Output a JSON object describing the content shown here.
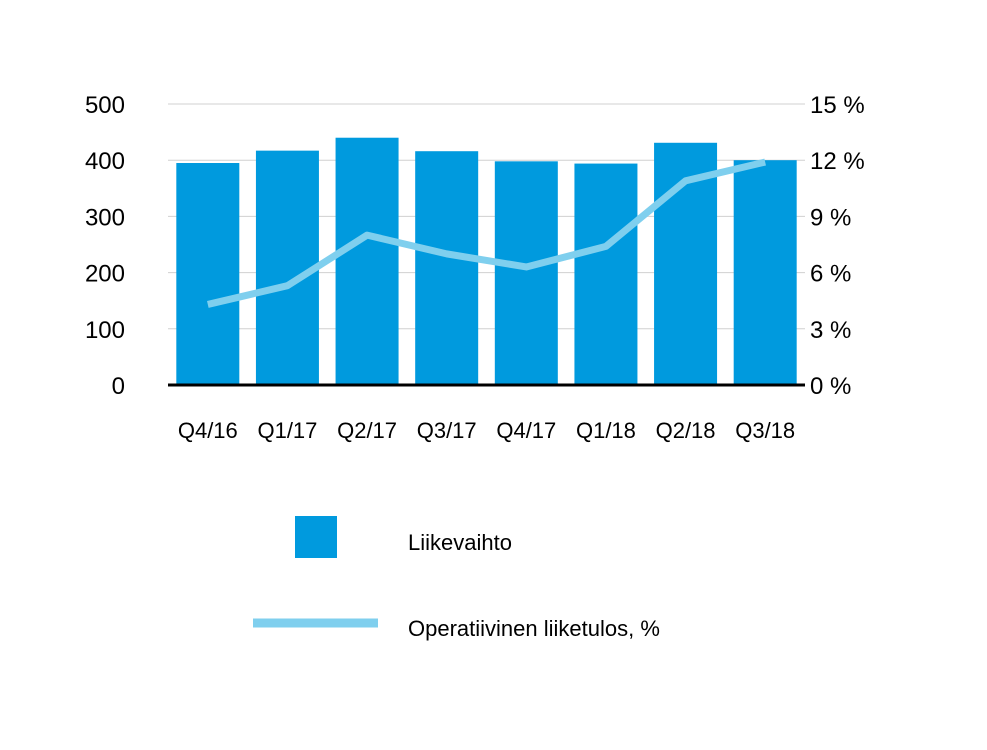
{
  "chart_data": {
    "type": "bar",
    "categories": [
      "Q4/16",
      "Q1/17",
      "Q2/17",
      "Q3/17",
      "Q4/17",
      "Q1/18",
      "Q2/18",
      "Q3/18"
    ],
    "series": [
      {
        "name": "Liikevaihto",
        "type": "bar",
        "axis": "left",
        "color": "#009ADE",
        "values": [
          395,
          417,
          440,
          416,
          398,
          394,
          431,
          400
        ]
      },
      {
        "name": "Operatiivinen liiketulos, %",
        "type": "line",
        "axis": "right",
        "color": "#7FCFEE",
        "values": [
          4.3,
          5.3,
          8.0,
          7.0,
          6.3,
          7.4,
          10.9,
          11.9
        ]
      }
    ],
    "y_left": {
      "lim": [
        0,
        500
      ],
      "ticks": [
        0,
        100,
        200,
        300,
        400,
        500
      ],
      "tick_labels": [
        "0",
        "100",
        "200",
        "300",
        "400",
        "500"
      ]
    },
    "y_right": {
      "lim": [
        0,
        15
      ],
      "ticks": [
        0,
        3,
        6,
        9,
        12,
        15
      ],
      "tick_labels": [
        "0 %",
        "3 %",
        "6 %",
        "9 %",
        "12 %",
        "15 %"
      ]
    },
    "grid": true,
    "legend_position": "bottom"
  }
}
